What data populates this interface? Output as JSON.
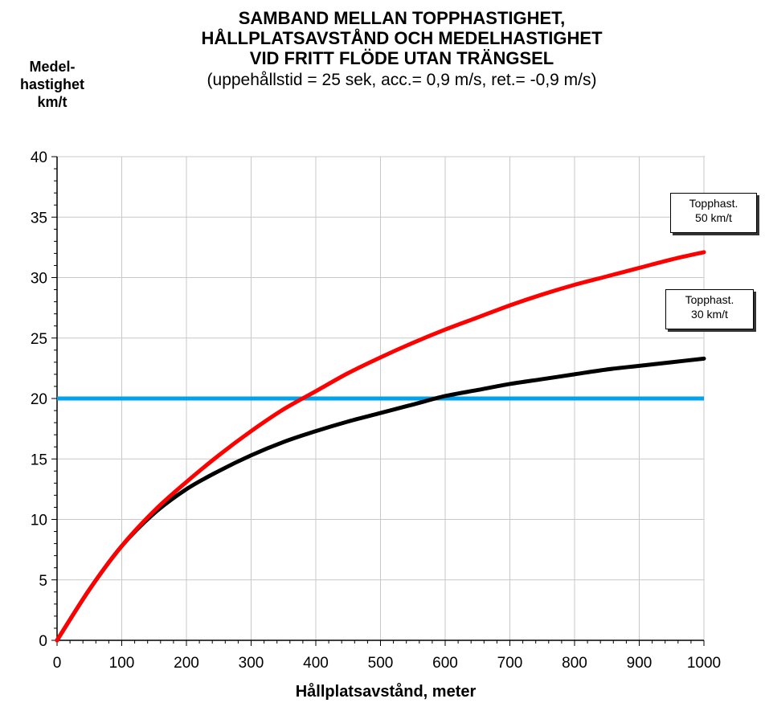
{
  "chart_data": {
    "type": "line",
    "title_lines": [
      "SAMBAND MELLAN TOPPHASTIGHET,",
      "HÅLLPLATSAVSTÅND OCH MEDELHASTIGHET",
      "VID FRITT FLÖDE UTAN TRÄNGSEL"
    ],
    "subtitle": "(uppehållstid  = 25 sek, acc.= 0,9 m/s, ret.= -0,9 m/s)",
    "ylabel_lines": [
      "Medel-",
      "hastighet",
      "km/t"
    ],
    "xlabel": "Hållplatsavstånd, meter",
    "xlim": [
      0,
      1000
    ],
    "ylim": [
      0,
      40
    ],
    "x_ticks": [
      0,
      100,
      200,
      300,
      400,
      500,
      600,
      700,
      800,
      900,
      1000
    ],
    "y_ticks": [
      0,
      5,
      10,
      15,
      20,
      25,
      30,
      35,
      40
    ],
    "grid": true,
    "series": [
      {
        "name_lines": [
          "Topphast.",
          "30 km/t"
        ],
        "color": "#000000",
        "x": [
          0,
          50,
          100,
          150,
          200,
          250,
          300,
          350,
          400,
          450,
          500,
          550,
          600,
          650,
          700,
          750,
          800,
          850,
          900,
          950,
          1000
        ],
        "y": [
          0,
          4.2,
          7.8,
          10.5,
          12.5,
          14.0,
          15.3,
          16.4,
          17.3,
          18.1,
          18.8,
          19.5,
          20.2,
          20.7,
          21.2,
          21.6,
          22.0,
          22.4,
          22.7,
          23.0,
          23.3
        ]
      },
      {
        "name_lines": [
          "Topphast.",
          "50 km/t"
        ],
        "color": "#ff0000",
        "x": [
          0,
          50,
          100,
          150,
          200,
          250,
          300,
          350,
          400,
          450,
          500,
          550,
          600,
          650,
          700,
          750,
          800,
          850,
          900,
          950,
          1000
        ],
        "y": [
          0,
          4.2,
          7.8,
          10.7,
          13.1,
          15.3,
          17.3,
          19.1,
          20.6,
          22.1,
          23.4,
          24.6,
          25.7,
          26.7,
          27.7,
          28.6,
          29.4,
          30.1,
          30.8,
          31.5,
          32.1
        ]
      }
    ],
    "reference_line": {
      "y": 20,
      "color": "#00a2e8"
    }
  }
}
